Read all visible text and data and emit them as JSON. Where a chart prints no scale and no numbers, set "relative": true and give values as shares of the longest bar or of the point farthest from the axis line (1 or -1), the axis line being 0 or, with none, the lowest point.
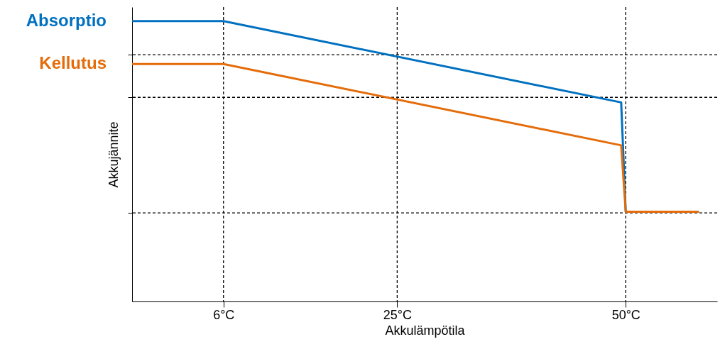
{
  "chart_data": {
    "type": "line",
    "relative": true,
    "xlabel": "Akkulämpötila",
    "ylabel": "Akkujännite",
    "xlim": [
      -4,
      60
    ],
    "xticks": [
      {
        "value": 6,
        "label": "6°C"
      },
      {
        "value": 25,
        "label": "25°C"
      },
      {
        "value": 50,
        "label": "50°C"
      }
    ],
    "series": [
      {
        "name": "Absorptio",
        "color": "#0070c0",
        "x": [
          -4,
          6,
          49.5,
          50,
          58
        ],
        "values": [
          1.0,
          1.0,
          0.71,
          0.32,
          0.32
        ]
      },
      {
        "name": "Kellutus",
        "color": "#e46c0a",
        "x": [
          -4,
          6,
          49.5,
          50,
          58
        ],
        "values": [
          0.847,
          0.847,
          0.557,
          0.32,
          0.32
        ]
      }
    ],
    "ref_lines": [
      {
        "axis": "x",
        "value": 6,
        "line_style": "dashed",
        "color": "#000000"
      },
      {
        "axis": "x",
        "value": 25,
        "line_style": "dashed",
        "color": "#000000"
      },
      {
        "axis": "x",
        "value": 50,
        "line_style": "dashed",
        "color": "#000000"
      },
      {
        "axis": "y",
        "value": 0.88,
        "line_style": "dashed",
        "color": "#000000"
      },
      {
        "axis": "y",
        "value": 0.728,
        "line_style": "dashed",
        "color": "#000000"
      },
      {
        "axis": "y",
        "value": 0.316,
        "line_style": "dashed",
        "color": "#000000"
      }
    ],
    "legend": "top left",
    "grid": false,
    "marker": "none",
    "line_style": "solid"
  }
}
